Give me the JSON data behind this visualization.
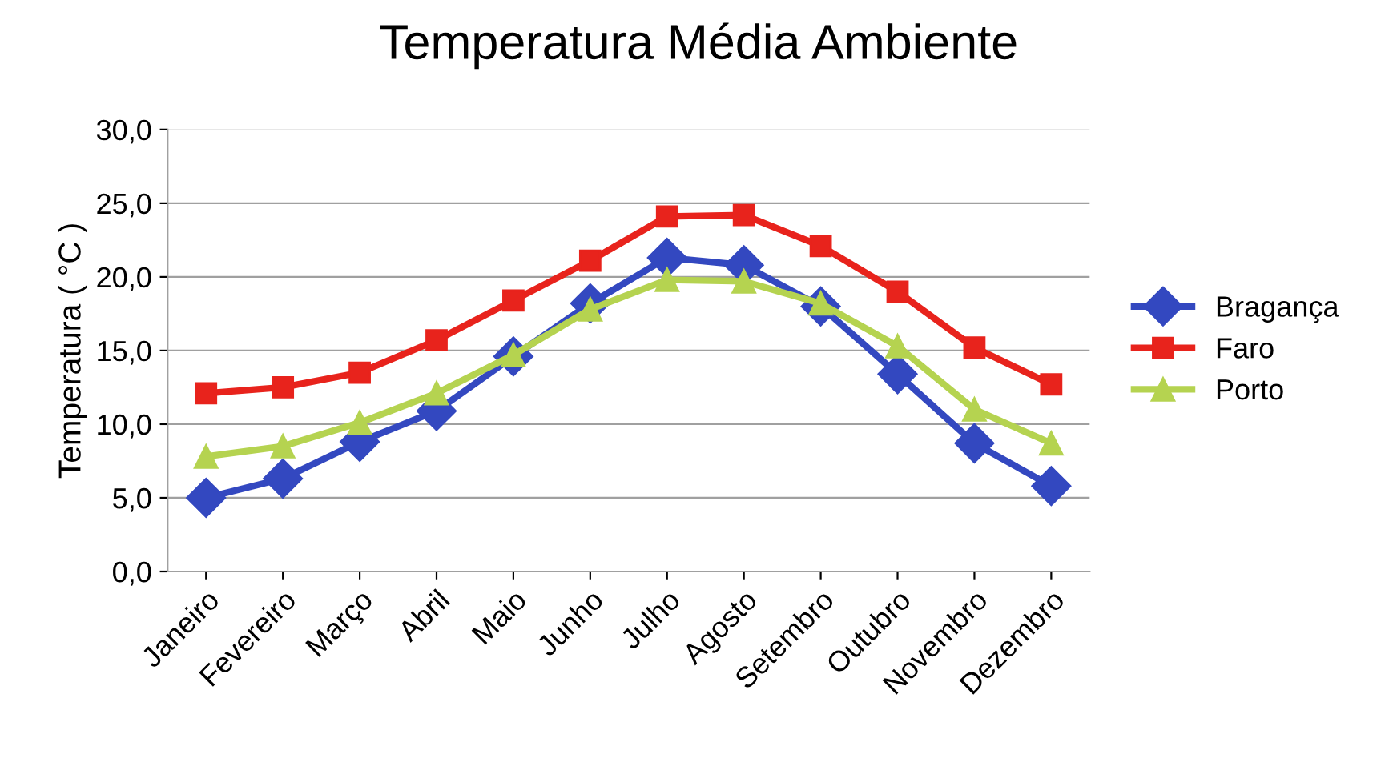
{
  "chart_data": {
    "type": "line",
    "title": "Temperatura Média Ambiente",
    "ylabel": "Temperatura ( °C )",
    "categories": [
      "Janeiro",
      "Fevereiro",
      "Março",
      "Abril",
      "Maio",
      "Junho",
      "Julho",
      "Agosto",
      "Setembro",
      "Outubro",
      "Novembro",
      "Dezembro"
    ],
    "series": [
      {
        "name": "Bragança",
        "color": "#3348c0",
        "marker": "diamond",
        "values": [
          5.0,
          6.3,
          8.8,
          10.9,
          14.6,
          18.2,
          21.3,
          20.8,
          18.0,
          13.4,
          8.7,
          5.8
        ]
      },
      {
        "name": "Faro",
        "color": "#e8231c",
        "marker": "square",
        "values": [
          12.1,
          12.5,
          13.5,
          15.7,
          18.4,
          21.1,
          24.1,
          24.2,
          22.1,
          19.0,
          15.2,
          12.7
        ]
      },
      {
        "name": "Porto",
        "color": "#b5d350",
        "marker": "triangle",
        "values": [
          7.8,
          8.5,
          10.1,
          12.1,
          14.7,
          17.8,
          19.8,
          19.7,
          18.2,
          15.3,
          11.0,
          8.7
        ]
      }
    ],
    "ylim": [
      0,
      30
    ],
    "yticks": [
      {
        "value": 0,
        "label": "0,0"
      },
      {
        "value": 5,
        "label": "5,0"
      },
      {
        "value": 10,
        "label": "10,0"
      },
      {
        "value": 15,
        "label": "15,0"
      },
      {
        "value": 20,
        "label": "20,0"
      },
      {
        "value": 25,
        "label": "25,0"
      },
      {
        "value": 30,
        "label": "30,0"
      }
    ],
    "grid": "y",
    "legend": "right",
    "line_style": "solid"
  }
}
